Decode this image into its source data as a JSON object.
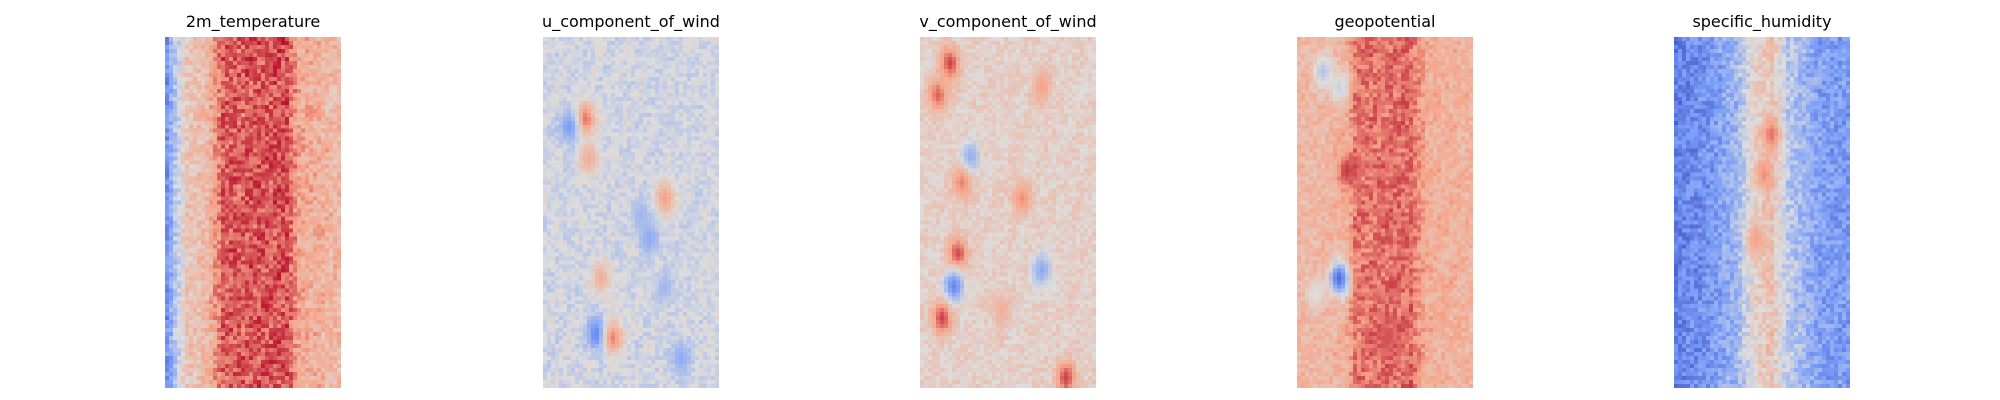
{
  "chart_data": [
    {
      "type": "heatmap",
      "title": "2m_temperature",
      "colormap": "coolwarm",
      "grid": false,
      "axes_visible": false,
      "field": {
        "rows": 88,
        "cols": 44,
        "profile": [
          {
            "col": 0,
            "value": 0.22
          },
          {
            "col": 2,
            "value": 0.4
          },
          {
            "col": 5,
            "value": 0.6
          },
          {
            "col": 10,
            "value": 0.66
          },
          {
            "col": 14,
            "value": 0.86
          },
          {
            "col": 30,
            "value": 0.88
          },
          {
            "col": 33,
            "value": 0.72
          },
          {
            "col": 43,
            "value": 0.66
          }
        ],
        "noise": 0.09,
        "blobs": []
      }
    },
    {
      "type": "heatmap",
      "title": "u_component_of_wind",
      "colormap": "coolwarm",
      "grid": false,
      "axes_visible": false,
      "field": {
        "rows": 88,
        "cols": 44,
        "profile": [
          {
            "col": 0,
            "value": 0.47
          },
          {
            "col": 43,
            "value": 0.47
          }
        ],
        "noise": 0.06,
        "blobs": [
          {
            "row": 20,
            "col": 10,
            "value": 0.85
          },
          {
            "row": 22,
            "col": 6,
            "value": 0.25
          },
          {
            "row": 30,
            "col": 11,
            "value": 0.7
          },
          {
            "row": 40,
            "col": 30,
            "value": 0.75
          },
          {
            "row": 44,
            "col": 24,
            "value": 0.35
          },
          {
            "row": 50,
            "col": 26,
            "value": 0.3
          },
          {
            "row": 60,
            "col": 14,
            "value": 0.7
          },
          {
            "row": 62,
            "col": 30,
            "value": 0.35
          },
          {
            "row": 74,
            "col": 13,
            "value": 0.15
          },
          {
            "row": 75,
            "col": 17,
            "value": 0.8
          },
          {
            "row": 80,
            "col": 34,
            "value": 0.3
          }
        ]
      }
    },
    {
      "type": "heatmap",
      "title": "v_component_of_wind",
      "colormap": "coolwarm",
      "grid": false,
      "axes_visible": false,
      "field": {
        "rows": 88,
        "cols": 44,
        "profile": [
          {
            "col": 0,
            "value": 0.56
          },
          {
            "col": 43,
            "value": 0.56
          }
        ],
        "noise": 0.06,
        "blobs": [
          {
            "row": 6,
            "col": 7,
            "value": 0.9
          },
          {
            "row": 12,
            "col": 30,
            "value": 0.75
          },
          {
            "row": 14,
            "col": 4,
            "value": 0.85
          },
          {
            "row": 30,
            "col": 12,
            "value": 0.3
          },
          {
            "row": 36,
            "col": 10,
            "value": 0.8
          },
          {
            "row": 40,
            "col": 25,
            "value": 0.78
          },
          {
            "row": 54,
            "col": 9,
            "value": 0.9
          },
          {
            "row": 58,
            "col": 30,
            "value": 0.3
          },
          {
            "row": 62,
            "col": 8,
            "value": 0.18
          },
          {
            "row": 68,
            "col": 20,
            "value": 0.7
          },
          {
            "row": 70,
            "col": 5,
            "value": 0.9
          },
          {
            "row": 85,
            "col": 36,
            "value": 0.9
          }
        ]
      }
    },
    {
      "type": "heatmap",
      "title": "geopotential",
      "colormap": "coolwarm",
      "grid": false,
      "axes_visible": false,
      "field": {
        "rows": 88,
        "cols": 44,
        "profile": [
          {
            "col": 0,
            "value": 0.67
          },
          {
            "col": 5,
            "value": 0.66
          },
          {
            "col": 12,
            "value": 0.7
          },
          {
            "col": 14,
            "value": 0.82
          },
          {
            "col": 28,
            "value": 0.84
          },
          {
            "col": 32,
            "value": 0.7
          },
          {
            "col": 43,
            "value": 0.68
          }
        ],
        "noise": 0.07,
        "blobs": [
          {
            "row": 8,
            "col": 6,
            "value": 0.4
          },
          {
            "row": 12,
            "col": 10,
            "value": 0.45
          },
          {
            "row": 33,
            "col": 12,
            "value": 0.92
          },
          {
            "row": 60,
            "col": 10,
            "value": 0.1
          },
          {
            "row": 64,
            "col": 4,
            "value": 0.5
          },
          {
            "row": 75,
            "col": 22,
            "value": 0.88
          }
        ]
      }
    },
    {
      "type": "heatmap",
      "title": "specific_humidity",
      "colormap": "coolwarm",
      "grid": false,
      "axes_visible": false,
      "field": {
        "rows": 88,
        "cols": 44,
        "profile": [
          {
            "col": 0,
            "value": 0.16
          },
          {
            "col": 8,
            "value": 0.22
          },
          {
            "col": 15,
            "value": 0.34
          },
          {
            "col": 20,
            "value": 0.55
          },
          {
            "col": 24,
            "value": 0.62
          },
          {
            "col": 28,
            "value": 0.42
          },
          {
            "col": 36,
            "value": 0.26
          },
          {
            "col": 43,
            "value": 0.24
          }
        ],
        "noise": 0.09,
        "blobs": [
          {
            "row": 24,
            "col": 24,
            "value": 0.82
          },
          {
            "row": 34,
            "col": 22,
            "value": 0.78
          },
          {
            "row": 50,
            "col": 20,
            "value": 0.75
          }
        ]
      }
    }
  ]
}
